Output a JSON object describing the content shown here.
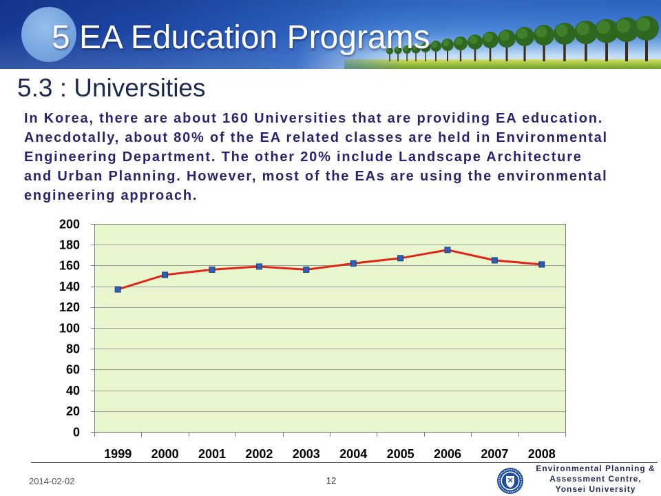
{
  "header": {
    "title": "5 EA Education Programs"
  },
  "slide": {
    "subtitle": "5.3 : Universities",
    "body_lines": [
      "In Korea, there are about 160 Universities that are providing EA education.",
      "Anecdotally, about 80% of the EA related classes are held in Environmental",
      "Engineering Department. The other 20% include Landscape Architecture",
      "and Urban Planning. However, most of the EAs are using the environmental",
      "engineering approach."
    ]
  },
  "chart_data": {
    "type": "line",
    "categories": [
      "1999",
      "2000",
      "2001",
      "2002",
      "2003",
      "2004",
      "2005",
      "2006",
      "2007",
      "2008"
    ],
    "values": [
      137,
      151,
      156,
      159,
      156,
      162,
      167,
      175,
      165,
      161
    ],
    "ylim": [
      0,
      200
    ],
    "yticks": [
      0,
      20,
      40,
      60,
      80,
      100,
      120,
      140,
      160,
      180,
      200
    ],
    "grid": true,
    "line_color": "#e2231a",
    "marker_color": "#2d5fb3",
    "plot_background": "#e8f6cd"
  },
  "footer": {
    "date": "2014-02-02",
    "page_number": "12",
    "organization_lines": [
      "Environmental Planning &",
      "Assessment Centre,",
      "Yonsei University"
    ],
    "logo_icon": "yonsei-seal-icon"
  },
  "theme": {
    "subtitle_color": "#1b2a4e",
    "body_text_color": "#28256e",
    "footer_text_color": "#1f2a55"
  }
}
